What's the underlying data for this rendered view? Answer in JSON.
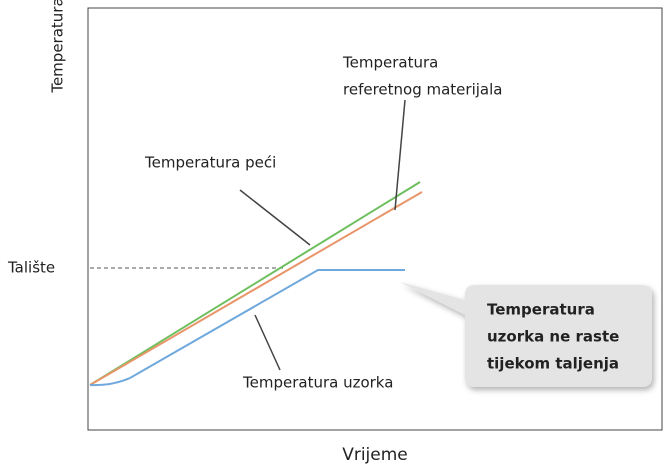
{
  "axes": {
    "y_label": "Temperatura",
    "x_label": "Vrijeme"
  },
  "melting_point_label": "Talište",
  "curves": [
    {
      "label_lines": [
        "Temperatura",
        "referetnog materijala"
      ]
    },
    {
      "label_lines": [
        "Temperatura peći"
      ]
    },
    {
      "label_lines": [
        "Temperatura uzorka"
      ]
    }
  ],
  "callout": {
    "lines": [
      "Temperatura",
      "uzorka ne raste",
      "tijekom taljenja"
    ]
  }
}
